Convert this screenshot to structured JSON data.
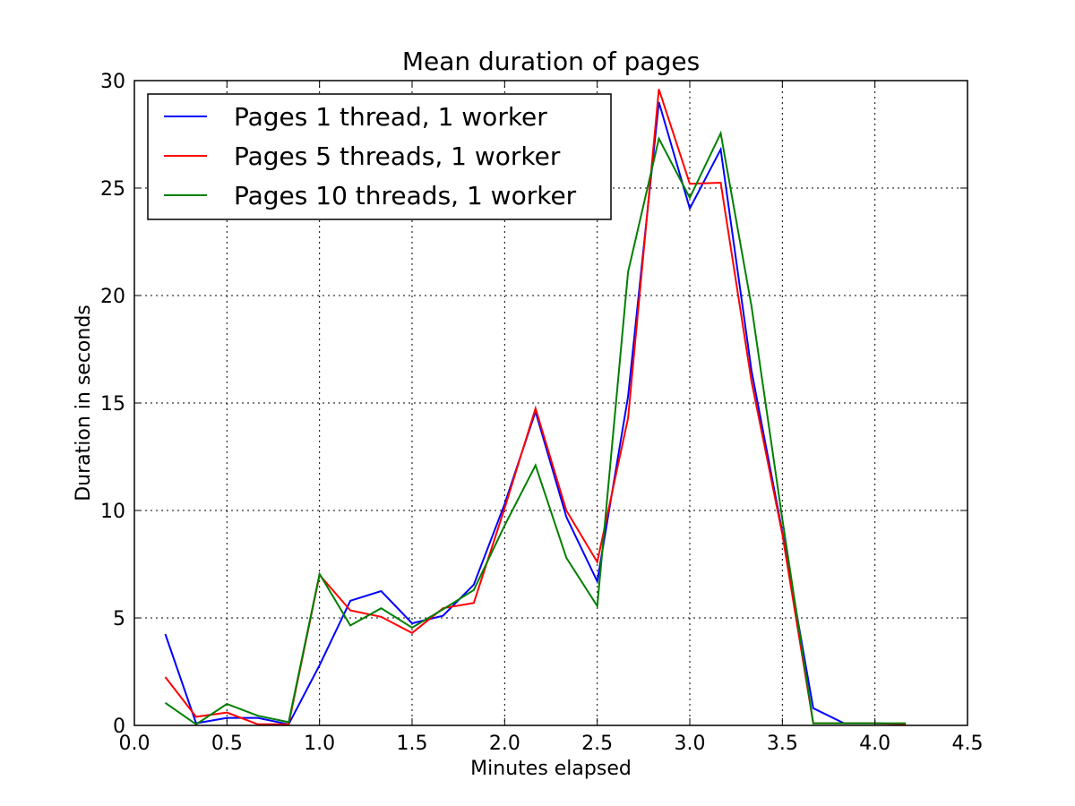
{
  "chart_data": {
    "type": "line",
    "title": "Mean duration of pages",
    "xlabel": "Minutes elapsed",
    "ylabel": "Duration in seconds",
    "xlim": [
      0.0,
      4.5
    ],
    "ylim": [
      0,
      30
    ],
    "xticks": [
      "0.0",
      "0.5",
      "1.0",
      "1.5",
      "2.0",
      "2.5",
      "3.0",
      "3.5",
      "4.0",
      "4.5"
    ],
    "yticks": [
      "0",
      "5",
      "10",
      "15",
      "20",
      "25",
      "30"
    ],
    "grid": true,
    "legend_position": "top-left",
    "x": [
      0.1667,
      0.3333,
      0.5,
      0.6667,
      0.8333,
      1.0,
      1.1667,
      1.3333,
      1.5,
      1.6667,
      1.8333,
      2.0,
      2.1667,
      2.3333,
      2.5,
      2.6667,
      2.8333,
      3.0,
      3.1667,
      3.3333,
      3.5,
      3.6667,
      3.8333,
      4.0,
      4.1667
    ],
    "series": [
      {
        "name": "Pages 1 thread, 1 worker",
        "color": "#0000ff",
        "values": [
          4.25,
          0.1,
          0.35,
          0.35,
          0.05,
          2.8,
          5.8,
          6.25,
          4.75,
          5.1,
          6.55,
          10.3,
          14.6,
          9.7,
          6.7,
          15.3,
          29.0,
          24.05,
          26.8,
          16.5,
          9.0,
          0.8,
          0.1,
          0.1,
          0.05
        ]
      },
      {
        "name": "Pages 5 threads, 1 worker",
        "color": "#ff0000",
        "values": [
          2.25,
          0.4,
          0.6,
          0.05,
          0.05,
          7.0,
          5.35,
          5.05,
          4.3,
          5.45,
          5.7,
          10.1,
          14.75,
          10.0,
          7.6,
          14.3,
          29.6,
          25.2,
          25.25,
          16.0,
          8.9,
          0.1,
          0.1,
          0.1,
          0.05
        ]
      },
      {
        "name": "Pages 10 threads, 1 worker",
        "color": "#008000",
        "values": [
          1.05,
          0.05,
          1.0,
          0.45,
          0.15,
          7.05,
          4.65,
          5.45,
          4.55,
          5.4,
          6.3,
          9.3,
          12.1,
          7.8,
          5.55,
          21.1,
          27.3,
          24.55,
          27.55,
          19.5,
          9.6,
          0.1,
          0.1,
          0.1,
          0.1
        ]
      }
    ]
  }
}
